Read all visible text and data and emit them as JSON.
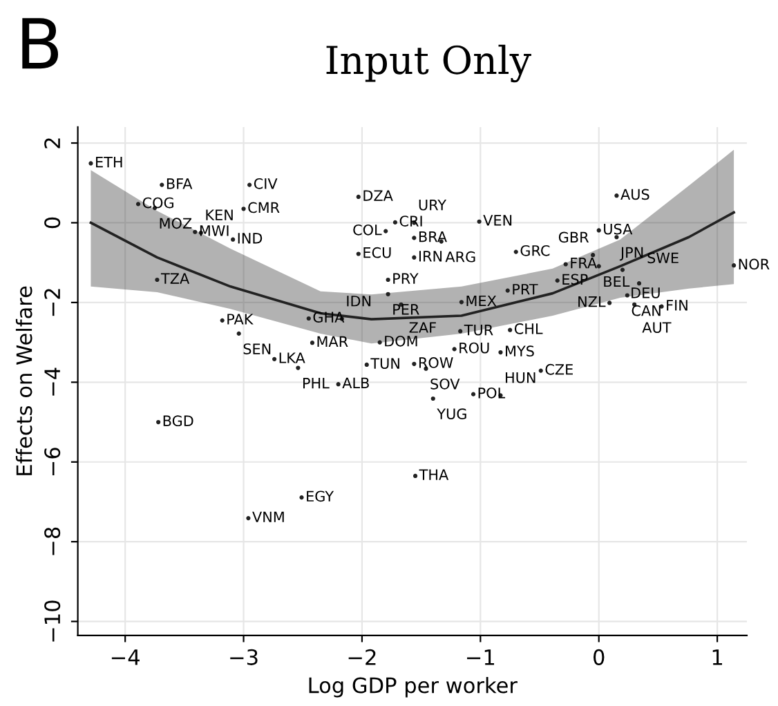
{
  "chart_data": {
    "type": "scatter",
    "title": "Input Only",
    "xlabel": "Log GDP per worker",
    "ylabel": "Effects on Welfare",
    "xlim": [
      -4.4,
      1.25
    ],
    "ylim": [
      -10.35,
      2.4
    ],
    "xticks": [
      -4,
      -3,
      -2,
      -1,
      0,
      1
    ],
    "yticks": [
      2,
      0,
      -2,
      -4,
      -6,
      -8,
      -10
    ],
    "grid": true,
    "legend": false,
    "series": [
      {
        "color": "#222222",
        "marker": "circle",
        "x": [
          -4.29,
          -3.69,
          -3.89,
          -3.75,
          -3.41,
          -3.36,
          -3.09,
          -2.95,
          -3.0,
          -3.73,
          -3.18,
          -3.04,
          -2.74,
          -2.54,
          -2.45,
          -2.17,
          -2.42,
          -2.2,
          -2.03,
          -2.03,
          -1.85,
          -1.96,
          -1.72,
          -1.8,
          -1.56,
          -1.56,
          -1.33,
          -1.56,
          -1.01,
          -0.7,
          -1.78,
          -1.78,
          -1.67,
          -1.16,
          -0.77,
          -1.17,
          -0.75,
          -1.22,
          -0.83,
          -1.56,
          -1.46,
          -0.49,
          -1.4,
          -1.06,
          -0.83,
          -1.55,
          -3.72,
          -2.51,
          -2.96,
          0.15,
          0.0,
          0.15,
          -0.35,
          -0.28,
          -0.05,
          0.0,
          0.2,
          0.34,
          0.24,
          0.09,
          0.3,
          0.53,
          1.14
        ],
        "values": [
          1.49,
          0.95,
          0.47,
          0.37,
          -0.23,
          -0.25,
          -0.42,
          0.95,
          0.35,
          -1.43,
          -2.45,
          -2.78,
          -3.42,
          -3.64,
          -2.4,
          -2.41,
          -3.01,
          -4.05,
          0.65,
          -0.78,
          -3.0,
          -3.56,
          0.01,
          -0.21,
          0.0,
          -0.38,
          -0.47,
          -0.87,
          0.03,
          -0.73,
          -1.43,
          -1.79,
          -2.05,
          -1.99,
          -1.7,
          -2.72,
          -2.69,
          -3.17,
          -3.25,
          -3.54,
          -3.66,
          -3.71,
          -4.41,
          -4.3,
          -4.33,
          -6.35,
          -5.0,
          -6.89,
          -7.41,
          0.68,
          -0.19,
          -0.36,
          -1.45,
          -1.04,
          -0.81,
          -1.09,
          -1.18,
          -1.52,
          -1.82,
          -2.01,
          -2.05,
          -2.1,
          -1.07
        ]
      },
      {
        "type": "line",
        "color": "#222222",
        "marker": "none",
        "line_style": "solid",
        "x": [
          -4.29,
          -3.73,
          -3.11,
          -2.35,
          -1.92,
          -1.16,
          -0.39,
          0.18,
          0.76,
          1.14
        ],
        "values": [
          0.0,
          -0.87,
          -1.6,
          -2.27,
          -2.42,
          -2.33,
          -1.77,
          -1.09,
          -0.36,
          0.26
        ],
        "upper": [
          1.32,
          0.3,
          -0.65,
          -1.72,
          -1.8,
          -1.6,
          -1.15,
          -0.42,
          0.93,
          1.83
        ],
        "lower": [
          -1.6,
          -1.74,
          -2.16,
          -2.78,
          -3.03,
          -2.78,
          -2.33,
          -1.88,
          -1.65,
          -1.54
        ]
      }
    ],
    "annotations": [
      "B",
      {
        "text": "ETH",
        "x": -4.29,
        "y": 1.49
      },
      {
        "text": "BFA",
        "x": -3.69,
        "y": 0.95
      },
      {
        "text": "COG",
        "x": -3.89,
        "y": 0.47
      },
      {
        "text": "MOZ",
        "x": -3.75,
        "y": 0.37
      },
      {
        "text": "MWI",
        "x": -3.41,
        "y": -0.23
      },
      {
        "text": "KEN",
        "x": -3.36,
        "y": -0.25
      },
      {
        "text": "IND",
        "x": -3.09,
        "y": -0.42
      },
      {
        "text": "CIV",
        "x": -2.95,
        "y": 0.95
      },
      {
        "text": "CMR",
        "x": -3.0,
        "y": 0.35
      },
      {
        "text": "TZA",
        "x": -3.73,
        "y": -1.43
      },
      {
        "text": "PAK",
        "x": -3.18,
        "y": -2.45
      },
      {
        "text": "SEN",
        "x": -3.04,
        "y": -2.78
      },
      {
        "text": "LKA",
        "x": -2.74,
        "y": -3.42
      },
      {
        "text": "PHL",
        "x": -2.54,
        "y": -3.64
      },
      {
        "text": "GHA",
        "x": -2.45,
        "y": -2.4
      },
      {
        "text": "IDN",
        "x": -2.17,
        "y": -2.41
      },
      {
        "text": "MAR",
        "x": -2.42,
        "y": -3.01
      },
      {
        "text": "ALB",
        "x": -2.2,
        "y": -4.05
      },
      {
        "text": "DZA",
        "x": -2.03,
        "y": 0.65
      },
      {
        "text": "ECU",
        "x": -2.03,
        "y": -0.78
      },
      {
        "text": "DOM",
        "x": -1.85,
        "y": -3.0
      },
      {
        "text": "TUN",
        "x": -1.96,
        "y": -3.56
      },
      {
        "text": "CRI",
        "x": -1.72,
        "y": 0.01
      },
      {
        "text": "COL",
        "x": -1.8,
        "y": -0.21
      },
      {
        "text": "URY",
        "x": -1.56,
        "y": 0.0
      },
      {
        "text": "BRA",
        "x": -1.56,
        "y": -0.38
      },
      {
        "text": "ARG",
        "x": -1.33,
        "y": -0.47
      },
      {
        "text": "IRN",
        "x": -1.56,
        "y": -0.87
      },
      {
        "text": "VEN",
        "x": -1.01,
        "y": 0.03
      },
      {
        "text": "GRC",
        "x": -0.7,
        "y": -0.73
      },
      {
        "text": "PRY",
        "x": -1.78,
        "y": -1.43
      },
      {
        "text": "PER",
        "x": -1.78,
        "y": -1.79
      },
      {
        "text": "ZAF",
        "x": -1.67,
        "y": -2.05
      },
      {
        "text": "MEX",
        "x": -1.16,
        "y": -1.99
      },
      {
        "text": "PRT",
        "x": -0.77,
        "y": -1.7
      },
      {
        "text": "TUR",
        "x": -1.17,
        "y": -2.72
      },
      {
        "text": "CHL",
        "x": -0.75,
        "y": -2.69
      },
      {
        "text": "ROU",
        "x": -1.22,
        "y": -3.17
      },
      {
        "text": "MYS",
        "x": -0.83,
        "y": -3.25
      },
      {
        "text": "ROW",
        "x": -1.56,
        "y": -3.54
      },
      {
        "text": "SOV",
        "x": -1.46,
        "y": -3.66
      },
      {
        "text": "CZE",
        "x": -0.49,
        "y": -3.71
      },
      {
        "text": "YUG",
        "x": -1.4,
        "y": -4.41
      },
      {
        "text": "POL",
        "x": -1.06,
        "y": -4.3
      },
      {
        "text": "HUN",
        "x": -0.83,
        "y": -4.33
      },
      {
        "text": "THA",
        "x": -1.55,
        "y": -6.35
      },
      {
        "text": "BGD",
        "x": -3.72,
        "y": -5.0
      },
      {
        "text": "EGY",
        "x": -2.51,
        "y": -6.89
      },
      {
        "text": "VNM",
        "x": -2.96,
        "y": -7.41
      },
      {
        "text": "AUS",
        "x": 0.15,
        "y": 0.68
      },
      {
        "text": "USA",
        "x": 0.0,
        "y": -0.19
      },
      {
        "text": "JPN",
        "x": 0.15,
        "y": -0.36
      },
      {
        "text": "ESP",
        "x": -0.35,
        "y": -1.45
      },
      {
        "text": "FRA",
        "x": -0.28,
        "y": -1.04
      },
      {
        "text": "GBR",
        "x": -0.05,
        "y": -0.81
      },
      {
        "text": "BEL",
        "x": 0.0,
        "y": -1.09
      },
      {
        "text": "DEU",
        "x": 0.2,
        "y": -1.18
      },
      {
        "text": "SWE",
        "x": 0.34,
        "y": -1.52
      },
      {
        "text": "CAN",
        "x": 0.24,
        "y": -1.82
      },
      {
        "text": "NZL",
        "x": 0.09,
        "y": -2.01
      },
      {
        "text": "AUT",
        "x": 0.3,
        "y": -2.05
      },
      {
        "text": "FIN",
        "x": 0.53,
        "y": -2.1
      },
      {
        "text": "NOR",
        "x": 1.14,
        "y": -1.07
      }
    ]
  }
}
